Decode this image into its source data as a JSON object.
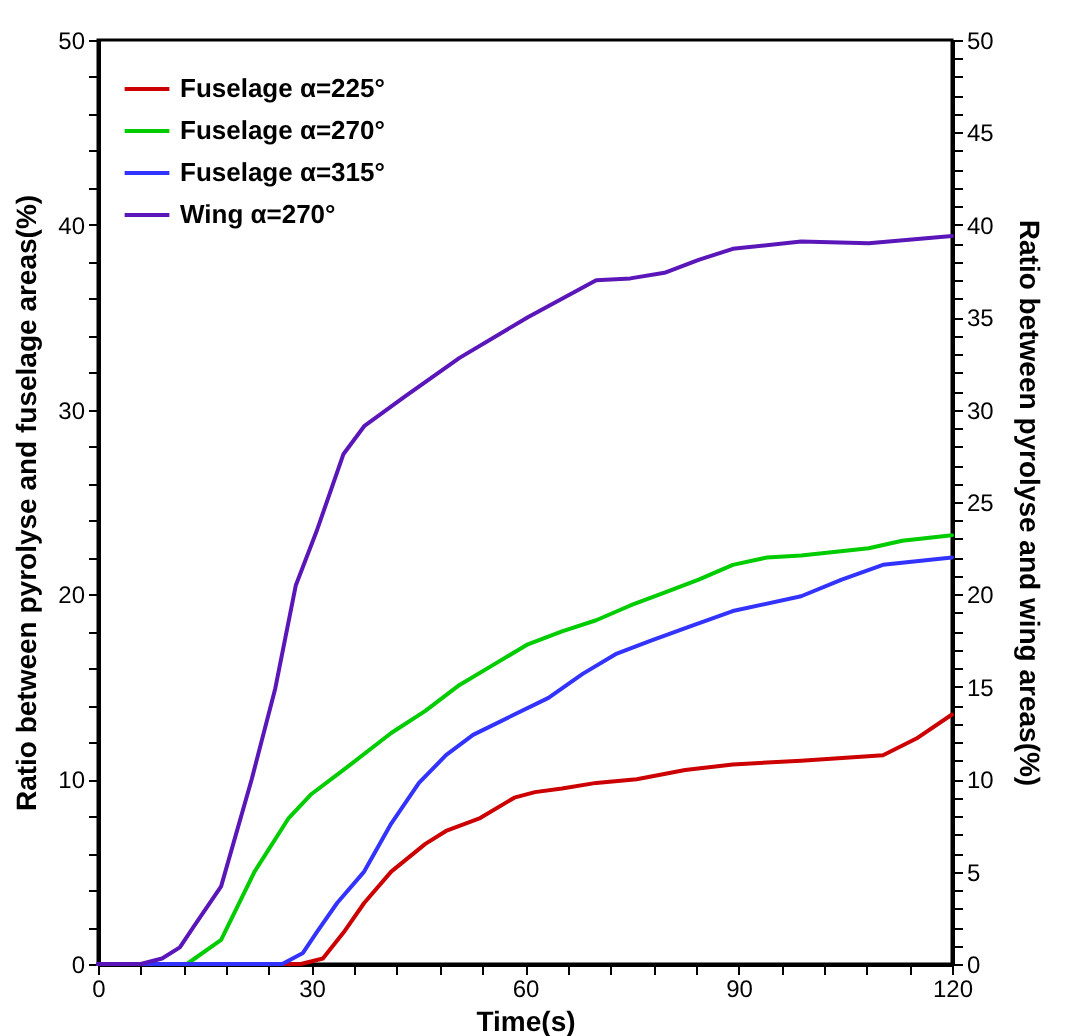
{
  "chart_data": {
    "type": "line",
    "xlabel": "Time(s)",
    "ylabel": "Ratio between pyrolyse and fuselage areas(%)",
    "y2label": "Ratio between pyrolyse and wing areas(%)",
    "xlim": [
      0,
      120
    ],
    "xticks": [
      0,
      {
        "value": 6,
        "label": null
      },
      {
        "value": 12,
        "label": null
      },
      {
        "value": 18,
        "label": null
      },
      {
        "value": 24,
        "label": null
      },
      30,
      {
        "value": 36,
        "label": null
      },
      {
        "value": 42,
        "label": null
      },
      {
        "value": 48,
        "label": null
      },
      {
        "value": 54,
        "label": null
      },
      60,
      {
        "value": 66,
        "label": null
      },
      {
        "value": 72,
        "label": null
      },
      {
        "value": 78,
        "label": null
      },
      {
        "value": 84,
        "label": null
      },
      90,
      {
        "value": 96,
        "label": null
      },
      {
        "value": 102,
        "label": null
      },
      {
        "value": 108,
        "label": null
      },
      {
        "value": 114,
        "label": null
      },
      120
    ],
    "ylim": [
      0,
      50
    ],
    "yticks": [
      0,
      {
        "value": 2,
        "label": null
      },
      {
        "value": 4,
        "label": null
      },
      {
        "value": 6,
        "label": null
      },
      {
        "value": 8,
        "label": null
      },
      10,
      {
        "value": 12,
        "label": null
      },
      {
        "value": 14,
        "label": null
      },
      {
        "value": 16,
        "label": null
      },
      {
        "value": 18,
        "label": null
      },
      20,
      {
        "value": 22,
        "label": null
      },
      {
        "value": 24,
        "label": null
      },
      {
        "value": 26,
        "label": null
      },
      {
        "value": 28,
        "label": null
      },
      30,
      {
        "value": 32,
        "label": null
      },
      {
        "value": 34,
        "label": null
      },
      {
        "value": 36,
        "label": null
      },
      {
        "value": 38,
        "label": null
      },
      40,
      {
        "value": 42,
        "label": null
      },
      {
        "value": 44,
        "label": null
      },
      {
        "value": 46,
        "label": null
      },
      {
        "value": 48,
        "label": null
      },
      50
    ],
    "y2lim": [
      0,
      50
    ],
    "y2ticks": [
      0,
      {
        "value": 1,
        "label": null
      },
      {
        "value": 2,
        "label": null
      },
      {
        "value": 3,
        "label": null
      },
      {
        "value": 4,
        "label": null
      },
      5,
      {
        "value": 6,
        "label": null
      },
      {
        "value": 7,
        "label": null
      },
      {
        "value": 8,
        "label": null
      },
      {
        "value": 9,
        "label": null
      },
      10,
      {
        "value": 11,
        "label": null
      },
      {
        "value": 12,
        "label": null
      },
      {
        "value": 13,
        "label": null
      },
      {
        "value": 14,
        "label": null
      },
      15,
      {
        "value": 16,
        "label": null
      },
      {
        "value": 17,
        "label": null
      },
      {
        "value": 18,
        "label": null
      },
      {
        "value": 19,
        "label": null
      },
      20,
      {
        "value": 21,
        "label": null
      },
      {
        "value": 22,
        "label": null
      },
      {
        "value": 23,
        "label": null
      },
      {
        "value": 24,
        "label": null
      },
      25,
      {
        "value": 26,
        "label": null
      },
      {
        "value": 27,
        "label": null
      },
      {
        "value": 28,
        "label": null
      },
      {
        "value": 29,
        "label": null
      },
      30,
      {
        "value": 31,
        "label": null
      },
      {
        "value": 32,
        "label": null
      },
      {
        "value": 33,
        "label": null
      },
      {
        "value": 34,
        "label": null
      },
      35,
      {
        "value": 36,
        "label": null
      },
      {
        "value": 37,
        "label": null
      },
      {
        "value": 38,
        "label": null
      },
      {
        "value": 39,
        "label": null
      },
      40,
      {
        "value": 41,
        "label": null
      },
      {
        "value": 42,
        "label": null
      },
      {
        "value": 43,
        "label": null
      },
      {
        "value": 44,
        "label": null
      },
      45,
      {
        "value": 46,
        "label": null
      },
      {
        "value": 47,
        "label": null
      },
      {
        "value": 48,
        "label": null
      },
      {
        "value": 49,
        "label": null
      },
      50
    ],
    "grid": false,
    "legend": "top left",
    "line_style": "solid",
    "series": [
      {
        "name": "Fuselage α=225°",
        "color": "#cc0000",
        "x": [
          0,
          28.5,
          31.6,
          34.5,
          37.4,
          41.2,
          46,
          48.9,
          53.7,
          58.5,
          61.4,
          65.2,
          70,
          75.7,
          82.5,
          89.2,
          98.8,
          110.3,
          115,
          120
        ],
        "values": [
          0,
          0,
          0.3,
          1.7,
          3.3,
          5,
          6.5,
          7.2,
          7.9,
          9,
          9.3,
          9.5,
          9.8,
          10,
          10.5,
          10.8,
          11,
          11.3,
          12.2,
          13.5
        ]
      },
      {
        "name": "Fuselage α=270°",
        "color": "#00cc00",
        "x": [
          0,
          12.5,
          17.3,
          22,
          26.8,
          30,
          34.5,
          41.2,
          46,
          50.8,
          55.6,
          60.4,
          65.2,
          70,
          74.8,
          79.6,
          84.4,
          89.2,
          94,
          98.8,
          108.3,
          113,
          120
        ],
        "values": [
          0,
          0,
          1.3,
          5,
          7.9,
          9.2,
          10.5,
          12.5,
          13.7,
          15.1,
          16.2,
          17.3,
          18,
          18.6,
          19.4,
          20.1,
          20.8,
          21.6,
          22,
          22.1,
          22.5,
          22.9,
          23.2
        ]
      },
      {
        "name": "Fuselage α=315°",
        "color": "#3333ff",
        "x": [
          0,
          25.9,
          28.8,
          30.7,
          33.6,
          37.4,
          41.2,
          45.1,
          48.9,
          52.7,
          58.5,
          63.3,
          68.1,
          72.9,
          77.7,
          83.4,
          89.2,
          98.8,
          104.5,
          110.3,
          120
        ],
        "values": [
          0,
          0,
          0.6,
          1.7,
          3.3,
          5,
          7.6,
          9.8,
          11.3,
          12.4,
          13.5,
          14.4,
          15.7,
          16.8,
          17.5,
          18.3,
          19.1,
          19.9,
          20.8,
          21.6,
          22
        ]
      },
      {
        "name": "Wing α=270°",
        "color": "#5a16b8",
        "axis": "y2",
        "x": [
          0,
          6,
          9,
          11.5,
          13.4,
          17.3,
          21.6,
          24.9,
          27.8,
          30.7,
          34.5,
          37.4,
          43.1,
          50.8,
          60.4,
          70,
          74.8,
          79.6,
          84.4,
          89.2,
          98.8,
          108.3,
          120
        ],
        "values": [
          0,
          0,
          0.3,
          0.9,
          2,
          4.2,
          10,
          14.9,
          20.5,
          23.4,
          27.6,
          29.1,
          30.7,
          32.8,
          35,
          37,
          37.1,
          37.4,
          38.1,
          38.7,
          39.1,
          39,
          39.4
        ]
      }
    ]
  }
}
